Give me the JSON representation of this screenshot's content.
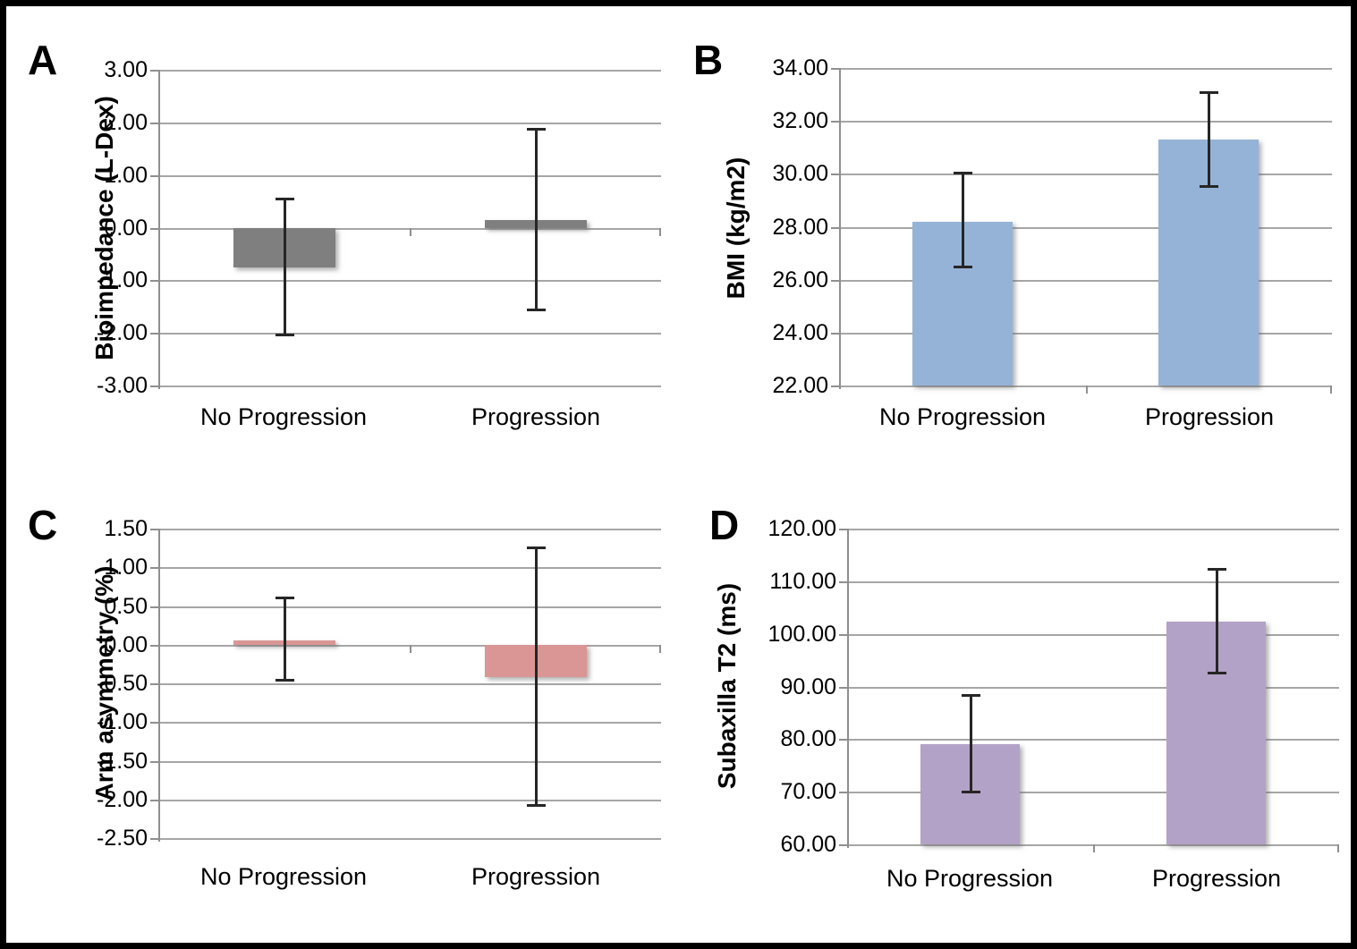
{
  "figure": {
    "style": {
      "background": "#ffffff",
      "border_color": "#000000",
      "grid_color": "#a6a6a6",
      "axis_color": "#8f8f8f",
      "error_bar_color": "#262626"
    }
  },
  "chart_data": [
    {
      "panel": "A",
      "type": "bar",
      "title": "",
      "ylabel": "Bioimpedance (L-Dex)",
      "xlabel": "",
      "categories": [
        "No Progression",
        "Progression"
      ],
      "values": [
        -0.75,
        0.15
      ],
      "error_upper": [
        0.55,
        1.88
      ],
      "error_lower": [
        -2.05,
        -1.57
      ],
      "ylim": [
        -3.0,
        3.0
      ],
      "ytick_step": 1.0,
      "ytick_labels": [
        "3.00",
        "2.00",
        "1.00",
        "0.00",
        "-1.00",
        "-2.00",
        "-3.00"
      ],
      "bar_color": "#7f7f7f",
      "grid": true,
      "legend": false
    },
    {
      "panel": "B",
      "type": "bar",
      "title": "",
      "ylabel": "BMI (kg/m2)",
      "xlabel": "",
      "categories": [
        "No Progression",
        "Progression"
      ],
      "values": [
        28.2,
        31.3
      ],
      "error_upper": [
        30.05,
        33.08
      ],
      "error_lower": [
        26.45,
        29.52
      ],
      "ylim": [
        22.0,
        34.0
      ],
      "ytick_step": 2.0,
      "ytick_labels": [
        "34.00",
        "32.00",
        "30.00",
        "28.00",
        "26.00",
        "24.00",
        "22.00"
      ],
      "bar_color": "#95b3d7",
      "grid": true,
      "legend": false
    },
    {
      "panel": "C",
      "type": "bar",
      "title": "",
      "ylabel": "Arm asymmetry (%)",
      "xlabel": "",
      "categories": [
        "No Progression",
        "Progression"
      ],
      "values": [
        0.06,
        -0.42
      ],
      "error_upper": [
        0.61,
        1.26
      ],
      "error_lower": [
        -0.47,
        -2.08
      ],
      "ylim": [
        -2.5,
        1.5
      ],
      "ytick_step": 0.5,
      "ytick_labels": [
        "1.50",
        "1.00",
        "0.50",
        "0.00",
        "-0.50",
        "-1.00",
        "-1.50",
        "-2.00",
        "-2.50"
      ],
      "bar_color": "#d99694",
      "grid": true,
      "legend": false
    },
    {
      "panel": "D",
      "type": "bar",
      "title": "",
      "ylabel": "Subaxilla T2 (ms)",
      "xlabel": "",
      "categories": [
        "No Progression",
        "Progression"
      ],
      "values": [
        79.1,
        102.4
      ],
      "error_upper": [
        88.4,
        112.4
      ],
      "error_lower": [
        69.8,
        92.4
      ],
      "ylim": [
        60.0,
        120.0
      ],
      "ytick_step": 10.0,
      "ytick_labels": [
        "120.00",
        "110.00",
        "100.00",
        "90.00",
        "80.00",
        "70.00",
        "60.00"
      ],
      "bar_color": "#b3a2c7",
      "grid": true,
      "legend": false
    }
  ]
}
